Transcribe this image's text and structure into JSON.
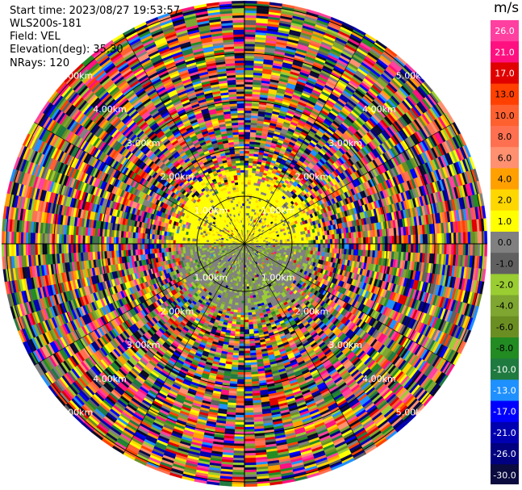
{
  "header": {
    "start_time_label": "Start time:",
    "start_time": "2023/08/27 19:53:57",
    "site": "WLS200s-181",
    "field_label": "Field:",
    "field": "VEL",
    "elevation_label": "Elevation(deg):",
    "elevation": "35.30",
    "nrays_label": "NRays:",
    "nrays": "120"
  },
  "colorbar": {
    "unit": "m/s",
    "ticks": [
      "26.0",
      "21.0",
      "17.0",
      "13.0",
      "10.0",
      "8.0",
      "6.0",
      "4.0",
      "2.0",
      "1.0",
      "0.0",
      "-1.0",
      "-2.0",
      "-4.0",
      "-6.0",
      "-8.0",
      "-10.0",
      "-13.0",
      "-17.0",
      "-21.0",
      "-26.0",
      "-30.0"
    ],
    "colors": [
      "#ff40a0",
      "#ff1080",
      "#e00000",
      "#ff4000",
      "#ff6030",
      "#ff7050",
      "#ff9070",
      "#ffa000",
      "#ffd700",
      "#ffff00",
      "#808080",
      "#606060",
      "#9acd32",
      "#7ea630",
      "#6b8e23",
      "#228b22",
      "#1f7a40",
      "#1e90ff",
      "#0000ff",
      "#0000b0",
      "#000080",
      "#0b0b40",
      "#0a0a20"
    ]
  },
  "chart_data": {
    "type": "heatmap",
    "subtype": "ppi-polar",
    "field": "VEL",
    "units": "m/s",
    "n_rays": 120,
    "range_rings_km": [
      1.0,
      2.0,
      3.0,
      4.0,
      5.0
    ],
    "ring_labels": [
      "1.00km",
      "2.00km",
      "3.00km",
      "4.00km",
      "5.00km"
    ],
    "notes": "Near range (< ~1.2 km) dominated by low velocities: yellow (+1 to +2 m/s) to the north, grey/olive (0 to -4 m/s) to the south; beyond that, random noise covering full color range."
  }
}
